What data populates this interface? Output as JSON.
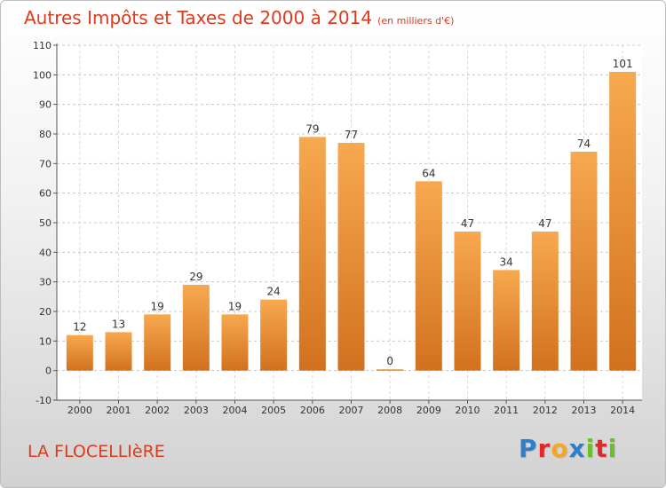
{
  "title": "Autres Impôts et Taxes de 2000 à 2014",
  "subtitle": "(en milliers d'€)",
  "commune": "LA FLOCELLIèRE",
  "logo": {
    "text": "Proxiti",
    "colors": [
      "#2f7fc8",
      "#e0272a",
      "#f5a623",
      "#2f7fc8",
      "#6cbf2b",
      "#e0272a",
      "#6cbf2b"
    ]
  },
  "colors": {
    "title": "#dd3a1e",
    "bar_top": "#f7a94f",
    "bar_bottom": "#d2711f"
  },
  "chart_data": {
    "type": "bar",
    "title": "Autres Impôts et Taxes de 2000 à 2014",
    "subtitle": "(en milliers d'€)",
    "categories": [
      "2000",
      "2001",
      "2002",
      "2003",
      "2004",
      "2005",
      "2006",
      "2007",
      "2008",
      "2009",
      "2010",
      "2011",
      "2012",
      "2013",
      "2014"
    ],
    "values": [
      12,
      13,
      19,
      29,
      19,
      24,
      79,
      77,
      0,
      64,
      47,
      34,
      47,
      74,
      101
    ],
    "ylim": [
      -10,
      110
    ],
    "yticks": [
      -10,
      0,
      10,
      20,
      30,
      40,
      50,
      60,
      70,
      80,
      90,
      100,
      110
    ],
    "grid": true,
    "xlabel": "",
    "ylabel": ""
  }
}
